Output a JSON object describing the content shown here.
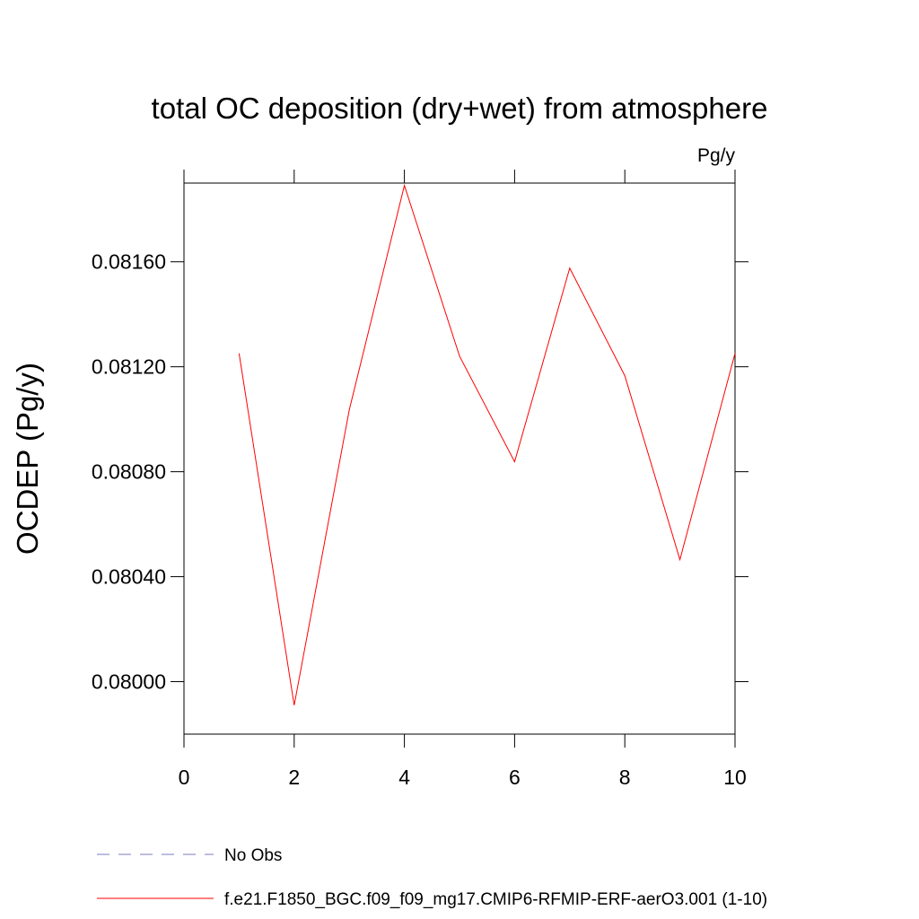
{
  "chart_data": {
    "type": "line",
    "title": "total OC deposition (dry+wet) from atmosphere",
    "units_label": "Pg/y",
    "y_label": "OCDEP  (Pg/y)",
    "x": [
      1,
      2,
      3,
      4,
      5,
      6,
      7,
      8,
      9,
      10
    ],
    "series": [
      {
        "name": "f.e21.F1850_BGC.f09_f09_mg17.CMIP6-RFMIP-ERF-aerO3.001 (1-10)",
        "color": "#ff0000",
        "dashed": false,
        "values": [
          0.081251,
          0.07991,
          0.081036,
          0.081891,
          0.081241,
          0.080838,
          0.081576,
          0.081166,
          0.080465,
          0.081251
        ]
      },
      {
        "name": "No Obs",
        "color": "#7b7bc0",
        "dashed": true,
        "values": [
          null,
          null,
          null,
          null,
          null,
          null,
          null,
          null,
          null,
          null
        ]
      }
    ],
    "xlim": [
      0,
      10
    ],
    "xticks": [
      0,
      2,
      4,
      6,
      8,
      10
    ],
    "ylim": [
      0.0798,
      0.0819
    ],
    "yticks": [
      {
        "value": 0.08,
        "label": "0.08000"
      },
      {
        "value": 0.0804,
        "label": "0.08040"
      },
      {
        "value": 0.0808,
        "label": "0.08080"
      },
      {
        "value": 0.0812,
        "label": "0.08120"
      },
      {
        "value": 0.0816,
        "label": "0.08160"
      }
    ],
    "grid": false
  }
}
